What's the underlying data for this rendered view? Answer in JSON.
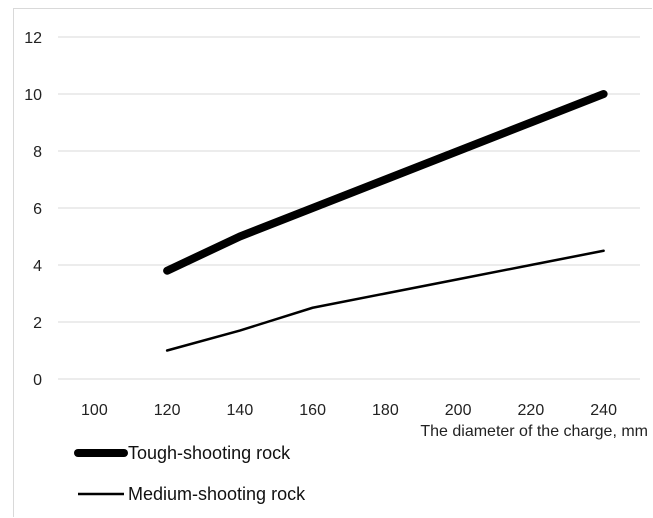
{
  "chart_data": {
    "type": "line",
    "title": "",
    "xlabel": "The diameter of the charge, mm",
    "ylabel": "",
    "categories": [
      "100",
      "120",
      "140",
      "160",
      "180",
      "200",
      "220",
      "240"
    ],
    "ylim": [
      0,
      12
    ],
    "yticks": [
      "0",
      "2",
      "4",
      "6",
      "8",
      "10",
      "12"
    ],
    "grid": "horizontal",
    "legend_position": "bottom-left",
    "series": [
      {
        "name": "Tough-shooting rock",
        "color": "#000000",
        "values": [
          null,
          3.8,
          5.0,
          6.0,
          7.0,
          8.0,
          9.0,
          10.0
        ]
      },
      {
        "name": "Medium-shooting rock",
        "color": "#000000",
        "values": [
          null,
          1.0,
          1.7,
          2.5,
          3.0,
          3.5,
          4.0,
          4.5
        ]
      }
    ]
  }
}
